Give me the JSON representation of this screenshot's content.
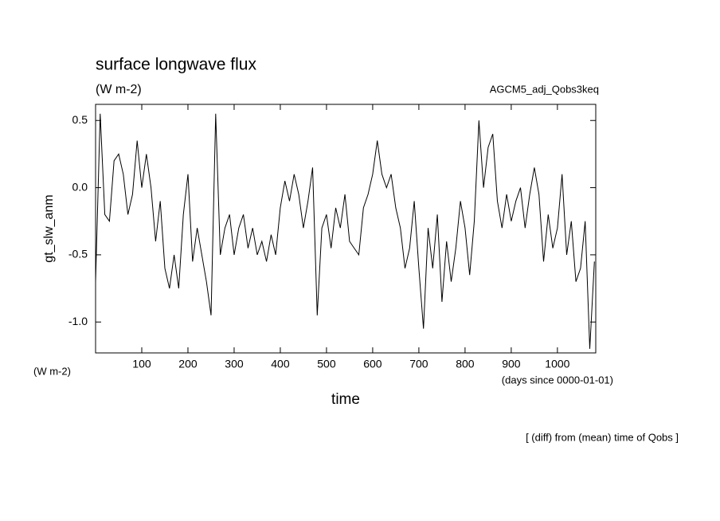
{
  "chart_data": {
    "type": "line",
    "title": "surface longwave flux",
    "subtitle": "(W m-2)",
    "run_label": "AGCM5_adj_Qobs3keq",
    "ylabel": "gt_slw_anm",
    "yunit": "(W m-2)",
    "xlabel": "time",
    "xunit": "(days since 0000-01-01)",
    "annotation": "[ (diff) from (mean) time of Qobs ]",
    "color": "#000000",
    "x": [
      0,
      10,
      20,
      30,
      40,
      50,
      60,
      70,
      80,
      90,
      100,
      110,
      120,
      130,
      140,
      150,
      160,
      170,
      180,
      190,
      200,
      210,
      220,
      230,
      240,
      250,
      260,
      270,
      280,
      290,
      300,
      310,
      320,
      330,
      340,
      350,
      360,
      370,
      380,
      390,
      400,
      410,
      420,
      430,
      440,
      450,
      460,
      470,
      480,
      490,
      500,
      510,
      520,
      530,
      540,
      550,
      560,
      570,
      580,
      590,
      600,
      610,
      620,
      630,
      640,
      650,
      660,
      670,
      680,
      690,
      700,
      710,
      720,
      730,
      740,
      750,
      760,
      770,
      780,
      790,
      800,
      810,
      820,
      830,
      840,
      850,
      860,
      870,
      880,
      890,
      900,
      910,
      920,
      930,
      940,
      950,
      960,
      970,
      980,
      990,
      1000,
      1010,
      1020,
      1030,
      1040,
      1050,
      1060,
      1070,
      1080
    ],
    "values": [
      -0.7,
      0.55,
      -0.2,
      -0.25,
      0.2,
      0.25,
      0.1,
      -0.2,
      -0.05,
      0.35,
      0.0,
      0.25,
      0.0,
      -0.4,
      -0.1,
      -0.6,
      -0.75,
      -0.5,
      -0.75,
      -0.2,
      0.1,
      -0.55,
      -0.3,
      -0.5,
      -0.7,
      -0.95,
      0.55,
      -0.5,
      -0.3,
      -0.2,
      -0.5,
      -0.3,
      -0.2,
      -0.45,
      -0.3,
      -0.5,
      -0.4,
      -0.55,
      -0.35,
      -0.5,
      -0.15,
      0.05,
      -0.1,
      0.1,
      -0.05,
      -0.3,
      -0.1,
      0.15,
      -0.95,
      -0.3,
      -0.2,
      -0.45,
      -0.15,
      -0.3,
      -0.05,
      -0.4,
      -0.45,
      -0.5,
      -0.15,
      -0.05,
      0.1,
      0.35,
      0.1,
      0.0,
      0.1,
      -0.15,
      -0.3,
      -0.6,
      -0.45,
      -0.1,
      -0.6,
      -1.05,
      -0.3,
      -0.6,
      -0.2,
      -0.85,
      -0.4,
      -0.7,
      -0.45,
      -0.1,
      -0.3,
      -0.65,
      -0.25,
      0.5,
      0.0,
      0.3,
      0.4,
      -0.1,
      -0.3,
      -0.05,
      -0.25,
      -0.1,
      0.0,
      -0.3,
      -0.05,
      0.15,
      -0.05,
      -0.55,
      -0.2,
      -0.45,
      -0.3,
      0.1,
      -0.5,
      -0.25,
      -0.7,
      -0.6,
      -0.25,
      -1.2,
      -0.55
    ],
    "xlim": [
      0,
      1083
    ],
    "ylim": [
      -1.23,
      0.62
    ],
    "xticks": [
      100,
      200,
      300,
      400,
      500,
      600,
      700,
      800,
      900,
      1000
    ],
    "yticks": [
      0.5,
      {
        "value": 0,
        "label": "0.0"
      },
      -0.5,
      {
        "value": -1,
        "label": "-1.0"
      }
    ]
  }
}
